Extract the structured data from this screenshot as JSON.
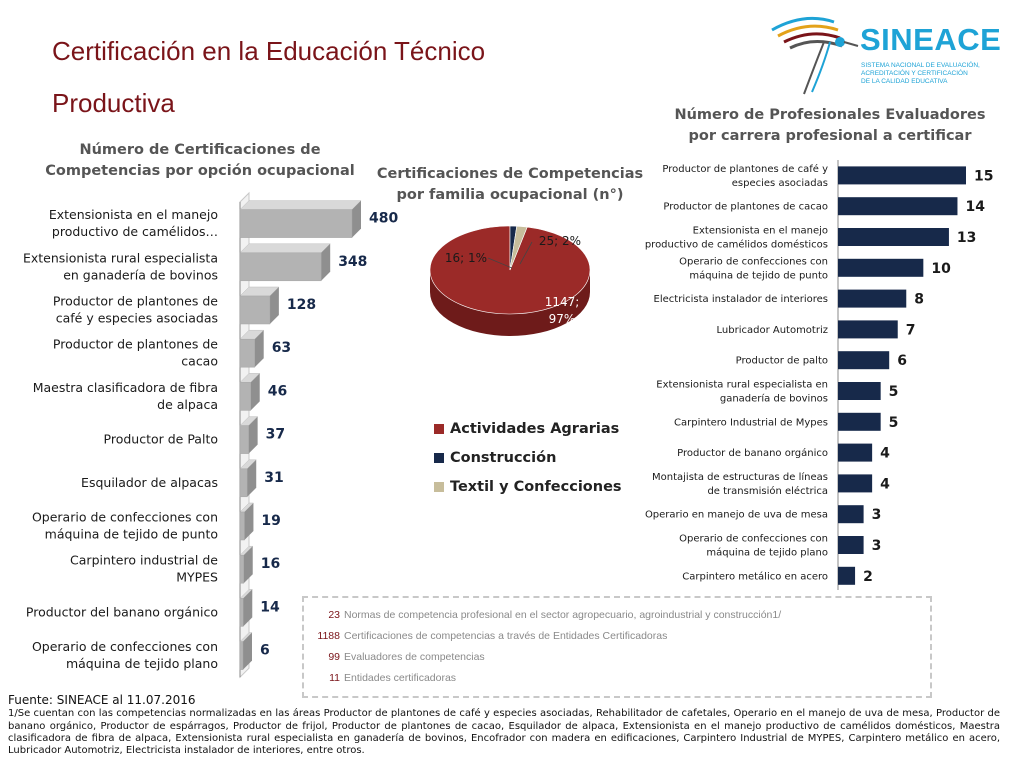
{
  "title_line1": "Certificación en la Educación Técnico",
  "title_line2": "Productiva",
  "logo": {
    "name": "SINEACE",
    "subtitle_line1": "SISTEMA NACIONAL DE EVALUACIÓN,",
    "subtitle_line2": "ACREDITACIÓN Y CERTIFICACIÓN",
    "subtitle_line3": "DE LA CALIDAD EDUCATIVA"
  },
  "colors": {
    "title": "#7a1419",
    "bar_gray": "#b3b3b3",
    "bar_navy": "#17294a",
    "pie_agrarias": "#9b2a28",
    "pie_construccion": "#17294a",
    "pie_textil": "#c7bd9b",
    "logo_blue": "#1ea3d6"
  },
  "left_chart_title": {
    "line1": "Número de Certificaciones de",
    "line2": "Competencias por opción ocupacional"
  },
  "mid_chart_title": {
    "line1": "Certificaciones de Competencias",
    "line2": "por  familia ocupacional  (n°)"
  },
  "right_chart_title": {
    "line1": "Número de Profesionales Evaluadores",
    "line2": "por  carrera profesional a certificar"
  },
  "chart_data": [
    {
      "type": "bar",
      "orientation": "horizontal",
      "style": "3d",
      "categories": [
        [
          "Extensionista en el manejo",
          "productivo de camélidos…"
        ],
        [
          "Extensionista rural especialista",
          "en ganadería de bovinos"
        ],
        [
          "Productor de plantones de",
          "café y especies asociadas"
        ],
        [
          "Productor de plantones de",
          "cacao"
        ],
        [
          "Maestra clasificadora de fibra",
          "de alpaca"
        ],
        [
          "Productor de Palto"
        ],
        [
          "Esquilador de alpacas"
        ],
        [
          "Operario de confecciones con",
          "máquina de tejido de punto"
        ],
        [
          "Carpintero industrial de",
          "MYPES"
        ],
        [
          "Productor del banano orgánico"
        ],
        [
          "Operario de confecciones con",
          "máquina de tejido plano"
        ]
      ],
      "values": [
        480,
        348,
        128,
        63,
        46,
        37,
        31,
        19,
        16,
        14,
        6
      ],
      "xlim": [
        0,
        480
      ]
    },
    {
      "type": "pie",
      "style": "3d",
      "labels": [
        "Actividades Agrarias",
        "Construcción",
        "Textil y Confecciones"
      ],
      "values": [
        1147,
        16,
        25
      ],
      "percents": [
        97,
        1,
        2
      ],
      "data_labels": [
        [
          "1147;",
          "97%"
        ],
        [
          "16; 1%"
        ],
        [
          "25; 2%"
        ]
      ],
      "legend_position": "bottom"
    },
    {
      "type": "bar",
      "orientation": "horizontal",
      "categories": [
        [
          "Productor de plantones de café y",
          "especies asociadas"
        ],
        [
          "Productor de plantones de cacao"
        ],
        [
          "Extensionista en el manejo",
          "productivo de camélidos domésticos"
        ],
        [
          "Operario de confecciones con",
          "máquina de tejido de punto"
        ],
        [
          "Electricista instalador de interiores"
        ],
        [
          "Lubricador Automotriz"
        ],
        [
          "Productor de palto"
        ],
        [
          "Extensionista rural especialista en",
          "ganadería de bovinos"
        ],
        [
          "Carpintero Industrial de Mypes"
        ],
        [
          "Productor de banano orgánico"
        ],
        [
          "Montajista de estructuras de líneas",
          "de transmisión eléctrica"
        ],
        [
          "Operario en manejo de uva de mesa"
        ],
        [
          "Operario de confecciones con",
          "máquina de tejido plano"
        ],
        [
          "Carpintero metálico en acero"
        ]
      ],
      "values": [
        15,
        14,
        13,
        10,
        8,
        7,
        6,
        5,
        5,
        4,
        4,
        3,
        3,
        2
      ],
      "xlim": [
        0,
        15
      ]
    }
  ],
  "summary": [
    {
      "number": "23",
      "text": "Normas de competencia profesional en el sector agropecuario, agroindustrial y construcción1/"
    },
    {
      "number": "1188",
      "text": "Certificaciones de competencias a través de Entidades Certificadoras"
    },
    {
      "number": "99",
      "text": "Evaluadores de competencias"
    },
    {
      "number": "11",
      "text": "Entidades certificadoras"
    }
  ],
  "footer": {
    "fuente": "Fuente: SINEACE al  11.07.2016",
    "note": "1/Se cuentan con las competencias normalizadas en las áreas Productor de plantones de café y especies asociadas, Rehabilitador de cafetales, Operario en el manejo de uva de mesa, Productor de banano orgánico, Productor de espárragos, Productor de frijol, Productor de plantones de cacao, Esquilador de alpaca, Extensionista en el manejo productivo de camélidos domésticos, Maestra clasificadora de fibra de alpaca, Extensionista rural especialista en ganadería de bovinos, Encofrador con madera en edificaciones, Carpintero Industrial de MYPES, Carpintero metálico en acero, Lubricador Automotriz, Electricista instalador de interiores, entre otros."
  }
}
